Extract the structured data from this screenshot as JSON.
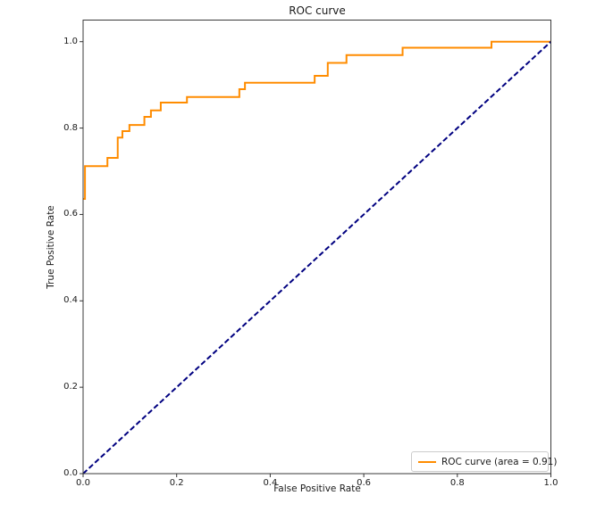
{
  "title": "ROC curve",
  "xlabel": "False Positive Rate",
  "ylabel": "True Positive Rate",
  "legend": {
    "position": "lower right",
    "label": "ROC curve (area = 0.91)"
  },
  "colors": {
    "roc_line": "#FF8C00",
    "diagonal_line": "#000080",
    "spine": "#3a3a3a",
    "tick": "#333333",
    "text": "#1a1a1a",
    "legend_border": "#cccccc",
    "background": "#ffffff"
  },
  "chart_data": {
    "type": "line",
    "title": "ROC curve",
    "xlabel": "False Positive Rate",
    "ylabel": "True Positive Rate",
    "xlim": [
      0.0,
      1.0
    ],
    "ylim": [
      0.0,
      1.05
    ],
    "grid": false,
    "legend_position": "lower right",
    "auc": 0.91,
    "x_ticks": [
      0.0,
      0.2,
      0.4,
      0.6,
      0.8,
      1.0
    ],
    "x_tick_labels": [
      "0.0",
      "0.2",
      "0.4",
      "0.6",
      "0.8",
      "1.0"
    ],
    "y_ticks": [
      0.0,
      0.2,
      0.4,
      0.6,
      0.8,
      1.0
    ],
    "y_tick_labels": [
      "0.0",
      "0.2",
      "0.4",
      "0.6",
      "0.8",
      "1.0"
    ],
    "series": [
      {
        "name": "ROC curve (area = 0.91)",
        "color": "#FF8C00",
        "style": "solid",
        "line_width": 2,
        "points": [
          [
            0.0,
            0.636
          ],
          [
            0.004,
            0.636
          ],
          [
            0.004,
            0.712
          ],
          [
            0.052,
            0.712
          ],
          [
            0.052,
            0.731
          ],
          [
            0.074,
            0.731
          ],
          [
            0.074,
            0.778
          ],
          [
            0.084,
            0.778
          ],
          [
            0.084,
            0.793
          ],
          [
            0.099,
            0.793
          ],
          [
            0.099,
            0.807
          ],
          [
            0.131,
            0.807
          ],
          [
            0.131,
            0.826
          ],
          [
            0.145,
            0.826
          ],
          [
            0.145,
            0.841
          ],
          [
            0.166,
            0.841
          ],
          [
            0.166,
            0.859
          ],
          [
            0.222,
            0.859
          ],
          [
            0.222,
            0.872
          ],
          [
            0.334,
            0.872
          ],
          [
            0.334,
            0.89
          ],
          [
            0.346,
            0.89
          ],
          [
            0.346,
            0.905
          ],
          [
            0.495,
            0.905
          ],
          [
            0.495,
            0.921
          ],
          [
            0.523,
            0.921
          ],
          [
            0.523,
            0.951
          ],
          [
            0.563,
            0.951
          ],
          [
            0.563,
            0.969
          ],
          [
            0.683,
            0.969
          ],
          [
            0.683,
            0.986
          ],
          [
            0.873,
            0.986
          ],
          [
            0.873,
            1.0
          ],
          [
            1.0,
            1.0
          ]
        ]
      },
      {
        "name": "chance-diagonal",
        "color": "#000080",
        "style": "dashed",
        "line_width": 2,
        "points": [
          [
            0.0,
            0.0
          ],
          [
            1.0,
            1.0
          ]
        ]
      }
    ]
  }
}
